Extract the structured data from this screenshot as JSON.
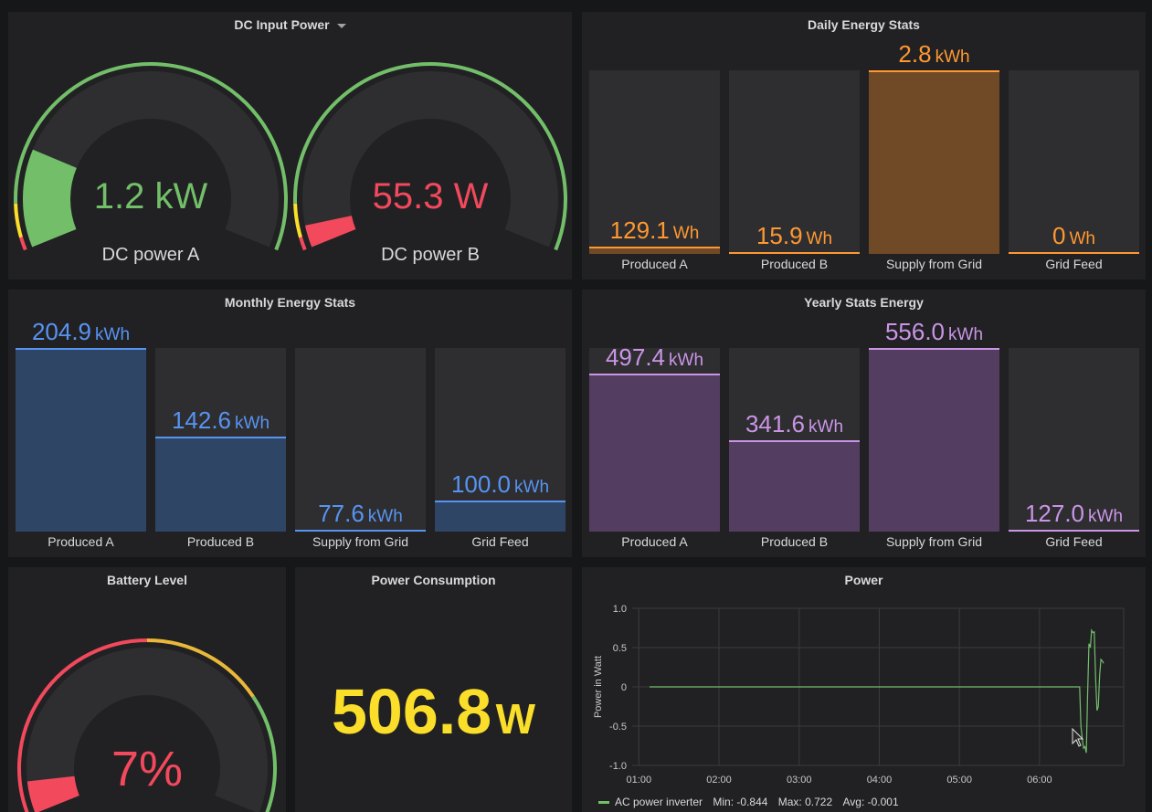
{
  "colors": {
    "green": "#73bf69",
    "red": "#f2495c",
    "yellow": "#fade2a",
    "orange": "#ff9830",
    "orange_fill": "#704a26",
    "blue": "#5794f2",
    "blue_fill": "#2f4565",
    "purple": "#ca95e5",
    "purple_fill": "#533e62",
    "bar_bg": "#2e2e31"
  },
  "dc_input": {
    "title": "DC Input Power",
    "gauges": [
      {
        "name": "DC power A",
        "value": "1.2 kW",
        "fraction": 0.2,
        "color": "#73bf69"
      },
      {
        "name": "DC power B",
        "value": "55.3 W",
        "fraction": 0.045,
        "color": "#f2495c"
      }
    ]
  },
  "daily": {
    "title": "Daily Energy Stats",
    "color": "#ff9830",
    "fill": "#704a26",
    "bars": [
      {
        "label": "Produced A",
        "num": "129.1",
        "unit": "Wh",
        "fraction": 0.04
      },
      {
        "label": "Produced B",
        "num": "15.9",
        "unit": "Wh",
        "fraction": 0.005
      },
      {
        "label": "Supply from Grid",
        "num": "2.8",
        "unit": "kWh",
        "fraction": 1.0
      },
      {
        "label": "Grid Feed",
        "num": "0",
        "unit": "Wh",
        "fraction": 0.0
      }
    ]
  },
  "monthly": {
    "title": "Monthly Energy Stats",
    "color": "#5794f2",
    "fill": "#2f4565",
    "bars": [
      {
        "label": "Produced A",
        "num": "204.9",
        "unit": "kWh",
        "fraction": 1.0
      },
      {
        "label": "Produced B",
        "num": "142.6",
        "unit": "kWh",
        "fraction": 0.515
      },
      {
        "label": "Supply from Grid",
        "num": "77.6",
        "unit": "kWh",
        "fraction": 0.0
      },
      {
        "label": "Grid Feed",
        "num": "100.0",
        "unit": "kWh",
        "fraction": 0.17
      }
    ]
  },
  "yearly": {
    "title": "Yearly Stats Energy",
    "color": "#ca95e5",
    "fill": "#533e62",
    "bars": [
      {
        "label": "Produced A",
        "num": "497.4",
        "unit": "kWh",
        "fraction": 0.86
      },
      {
        "label": "Produced B",
        "num": "341.6",
        "unit": "kWh",
        "fraction": 0.5
      },
      {
        "label": "Supply from Grid",
        "num": "556.0",
        "unit": "kWh",
        "fraction": 1.0
      },
      {
        "label": "Grid Feed",
        "num": "127.0",
        "unit": "kWh",
        "fraction": 0.0
      }
    ]
  },
  "battery": {
    "title": "Battery Level",
    "value": "7%",
    "percent": 7,
    "color": "#f2495c"
  },
  "consumption": {
    "title": "Power Consumption",
    "num": "506.8",
    "unit": "W"
  },
  "power": {
    "title": "Power",
    "legend": {
      "series": "AC power inverter",
      "min": "Min: -0.844",
      "max": "Max: 0.722",
      "avg": "Avg: -0.001"
    }
  },
  "chart_data": {
    "type": "line",
    "title": "Power",
    "ylabel": "Power in Watt",
    "xlabel": "",
    "ylim": [
      -1.0,
      1.0
    ],
    "xlim": [
      "00:55",
      "07:03"
    ],
    "x_ticks": [
      "01:00",
      "02:00",
      "03:00",
      "04:00",
      "05:00",
      "06:00"
    ],
    "y_ticks": [
      "1.0",
      "0.5",
      "0",
      "-0.5",
      "-1.0"
    ],
    "grid": true,
    "legend_position": "bottom-left",
    "series": [
      {
        "name": "AC power inverter",
        "color": "#73bf69",
        "points": [
          [
            "01:08",
            0
          ],
          [
            "06:30",
            0
          ],
          [
            "06:31",
            -0.5
          ],
          [
            "06:32",
            -0.66
          ],
          [
            "06:33",
            -0.78
          ],
          [
            "06:34",
            -0.76
          ],
          [
            "06:35",
            -0.84
          ],
          [
            "06:36",
            -0.1
          ],
          [
            "06:37",
            0.55
          ],
          [
            "06:38",
            0.5
          ],
          [
            "06:39",
            0.72
          ],
          [
            "06:40",
            0.69
          ],
          [
            "06:41",
            0.7
          ],
          [
            "06:42",
            0.1
          ],
          [
            "06:43",
            -0.3
          ],
          [
            "06:44",
            -0.25
          ],
          [
            "06:45",
            0.15
          ],
          [
            "06:46",
            0.35
          ],
          [
            "06:47",
            0.33
          ],
          [
            "06:48",
            0.3
          ]
        ]
      }
    ]
  }
}
